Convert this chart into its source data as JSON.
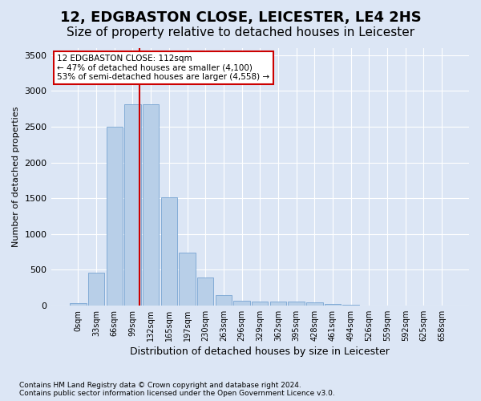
{
  "title": "12, EDGBASTON CLOSE, LEICESTER, LE4 2HS",
  "subtitle": "Size of property relative to detached houses in Leicester",
  "xlabel": "Distribution of detached houses by size in Leicester",
  "ylabel": "Number of detached properties",
  "footnote1": "Contains HM Land Registry data © Crown copyright and database right 2024.",
  "footnote2": "Contains public sector information licensed under the Open Government Licence v3.0.",
  "bin_labels": [
    "0sqm",
    "33sqm",
    "66sqm",
    "99sqm",
    "132sqm",
    "165sqm",
    "197sqm",
    "230sqm",
    "263sqm",
    "296sqm",
    "329sqm",
    "362sqm",
    "395sqm",
    "428sqm",
    "461sqm",
    "494sqm",
    "526sqm",
    "559sqm",
    "592sqm",
    "625sqm",
    "658sqm"
  ],
  "bar_values": [
    30,
    460,
    2500,
    2820,
    2820,
    1510,
    740,
    390,
    140,
    70,
    55,
    55,
    55,
    40,
    15,
    5,
    0,
    0,
    0,
    0,
    0
  ],
  "bar_color": "#b8cfe8",
  "bar_edge_color": "#6699cc",
  "vline_x": 3.39,
  "vline_color": "#cc0000",
  "annotation_title": "12 EDGBASTON CLOSE: 112sqm",
  "annotation_line1": "← 47% of detached houses are smaller (4,100)",
  "annotation_line2": "53% of semi-detached houses are larger (4,558) →",
  "annotation_box_color": "#cc0000",
  "ylim": [
    0,
    3600
  ],
  "yticks": [
    0,
    500,
    1000,
    1500,
    2000,
    2500,
    3000,
    3500
  ],
  "bg_color": "#dce6f5",
  "plot_bg_color": "#dce6f5",
  "grid_color": "#ffffff",
  "title_fontsize": 13,
  "subtitle_fontsize": 11
}
